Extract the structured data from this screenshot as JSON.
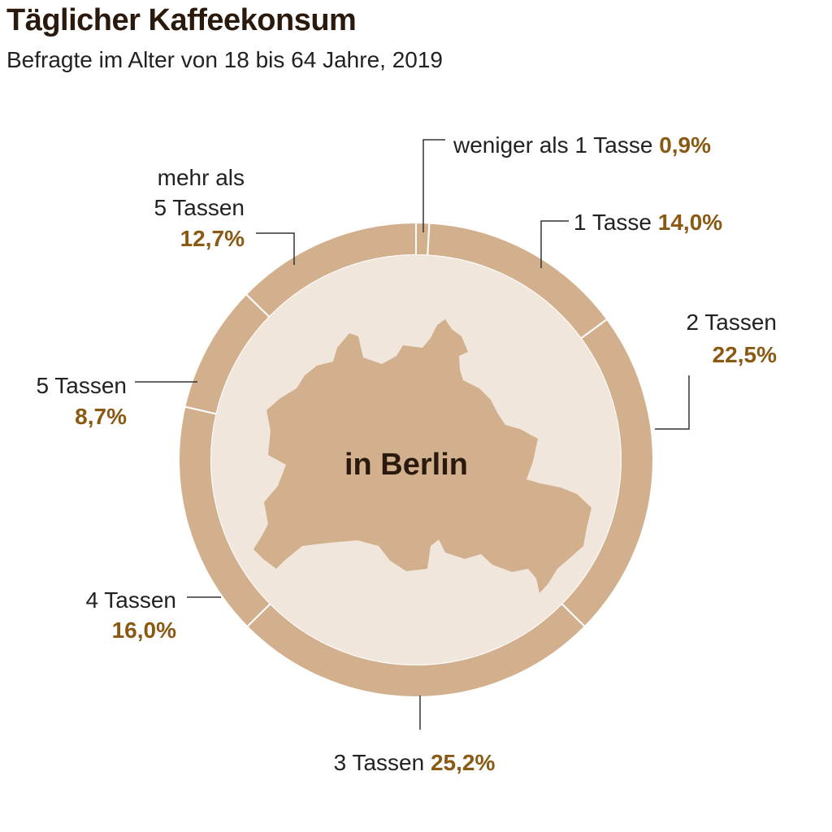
{
  "title": "Täglicher Kaffeekonsum",
  "subtitle": "Befragte im Alter von 18 bis 64 Jahre, 2019",
  "center_label": "in Berlin",
  "colors": {
    "ring": "#d2b08e",
    "inner": "#f1e6dc",
    "map": "#d2b08e",
    "separator": "#ffffff",
    "value_text": "#8a5a14",
    "label_text": "#222222",
    "title_text": "#2a1a0e",
    "leader": "#333333"
  },
  "chart_data": {
    "type": "pie",
    "title": "Täglicher Kaffeekonsum",
    "subtitle": "Befragte im Alter von 18 bis 64 Jahre, 2019",
    "slices": [
      {
        "label": "weniger als 1 Tasse",
        "value": 0.9,
        "value_label": "0,9%"
      },
      {
        "label": "1 Tasse",
        "value": 14.0,
        "value_label": "14,0%"
      },
      {
        "label": "2 Tassen",
        "value": 22.5,
        "value_label": "22,5%"
      },
      {
        "label": "3 Tassen",
        "value": 25.2,
        "value_label": "25,2%"
      },
      {
        "label": "4 Tassen",
        "value": 16.0,
        "value_label": "16,0%"
      },
      {
        "label": "5 Tassen",
        "value": 8.7,
        "value_label": "8,7%"
      },
      {
        "label": "mehr als 5 Tassen",
        "value": 12.7,
        "value_label": "12,7%"
      }
    ]
  }
}
